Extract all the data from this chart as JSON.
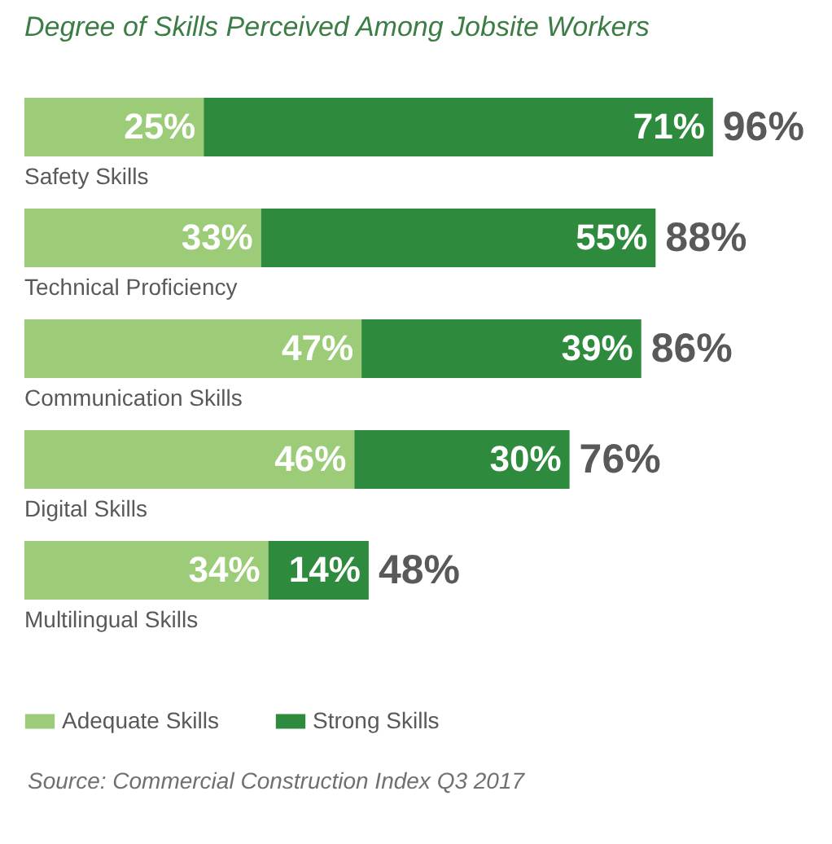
{
  "chart_data": {
    "type": "bar",
    "orientation": "horizontal",
    "stacked": true,
    "title": "Degree of Skills Perceived Among Jobsite Workers",
    "categories": [
      "Safety Skills",
      "Technical Proficiency",
      "Communication Skills",
      "Digital Skills",
      "Multilingual Skills"
    ],
    "series": [
      {
        "name": "Adequate Skills",
        "color": "#9ccc78",
        "values": [
          25,
          33,
          47,
          46,
          34
        ],
        "value_labels": [
          "25%",
          "33%",
          "47%",
          "46%",
          "34%"
        ]
      },
      {
        "name": "Strong Skills",
        "color": "#2e8b3e",
        "values": [
          71,
          55,
          39,
          30,
          14
        ],
        "value_labels": [
          "71%",
          "55%",
          "39%",
          "30%",
          "14%"
        ]
      }
    ],
    "totals": [
      "96%",
      "88%",
      "86%",
      "76%",
      "48%"
    ],
    "legend": "bottom left",
    "annotations": [
      "Source: Commercial Construction Index Q3 2017"
    ]
  }
}
